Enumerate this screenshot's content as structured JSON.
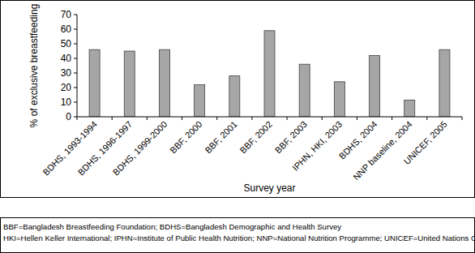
{
  "chart_data": {
    "type": "bar",
    "y_label": "% of exclusive breastfeeding",
    "x_label": "Survey year",
    "categories": [
      "BDHS, 1993-1994",
      "BDHS, 1996-1997",
      "BDHS, 1999-2000",
      "BBF, 2000",
      "BBF, 2001",
      "BBF, 2002",
      "BBF, 2003",
      "IPHN, HKI, 2003",
      "BDHS, 2004",
      "NNP baseline, 2004",
      "UNICEF, 2005"
    ],
    "values": [
      46,
      45,
      46,
      22,
      28,
      59,
      36,
      24,
      42,
      11.5,
      46
    ],
    "color": "#a6a6a6",
    "ylim": [
      0,
      70
    ],
    "yticks": [
      0,
      10,
      20,
      30,
      40,
      50,
      60,
      70
    ],
    "grid": false,
    "annotations": [
      "BBF=Bangladesh Breastfeeding Foundation; BDHS=Bangladesh Demographic and Health Survey",
      "HKI=Hellen Keller International; IPHN=Institute of Public Health Nutrition; NNP=National Nutrition Programme; UNICEF=United Nations Children’s Fund"
    ]
  }
}
